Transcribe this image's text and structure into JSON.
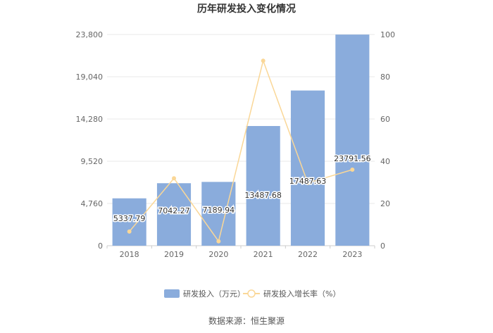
{
  "chart_data": {
    "type": "bar",
    "title": "历年研发投入变化情况",
    "categories": [
      "2018",
      "2019",
      "2020",
      "2021",
      "2022",
      "2023"
    ],
    "series": [
      {
        "name": "研发投入（万元）",
        "type": "bar",
        "axis": "left",
        "color": "#8aacdc",
        "values": [
          5337.79,
          7042.27,
          7189.94,
          13487.68,
          17487.63,
          23791.56
        ],
        "labels": [
          "5337.79",
          "7042.27",
          "7189.94",
          "13487.68",
          "17487.63",
          "23791.56"
        ]
      },
      {
        "name": "研发投入增长率（%）",
        "type": "line",
        "axis": "right",
        "color": "#fad797",
        "values": [
          6.7,
          31.9,
          2.1,
          87.6,
          29.7,
          36.0
        ]
      }
    ],
    "y_left": {
      "ylim": [
        0,
        23800
      ],
      "ticks": [
        0,
        4760,
        9520,
        14280,
        19040,
        23800
      ],
      "tick_labels": [
        "0",
        "4,760",
        "9,520",
        "14,280",
        "19,040",
        "23,800"
      ]
    },
    "y_right": {
      "ylim": [
        0,
        100
      ],
      "ticks": [
        0,
        20,
        40,
        60,
        80,
        100
      ],
      "tick_labels": [
        "0",
        "20",
        "40",
        "60",
        "80",
        "100"
      ]
    },
    "grid": true,
    "legend": "bottom-center",
    "source": "数据来源：恒生聚源"
  }
}
